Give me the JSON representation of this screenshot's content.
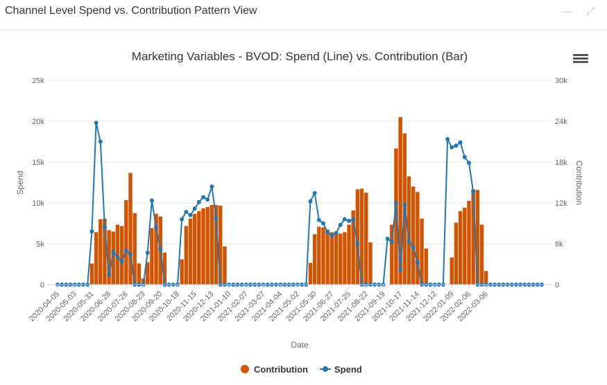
{
  "panel": {
    "title": "Channel Level Spend vs. Contribution Pattern View",
    "minimize_icon": "minimize-icon",
    "expand_icon": "expand-icon"
  },
  "menu_icon": "hamburger-menu-icon",
  "colors": {
    "contribution": "#d35400",
    "spend": "#1f77b4",
    "grid": "#e6e6e6",
    "text": "#666666"
  },
  "chart_data": {
    "type": "bar",
    "title": "Marketing Variables - BVOD: Spend (Line) vs. Contribution (Bar)",
    "xlabel": "Date",
    "ylabel": "Spend",
    "y2label": "Contribution",
    "ylim": [
      0,
      25000
    ],
    "y2lim": [
      0,
      30000
    ],
    "yticks": [
      "0",
      "5k",
      "10k",
      "15k",
      "20k",
      "25k"
    ],
    "y2ticks": [
      "0",
      "6k",
      "12k",
      "18k",
      "24k",
      "30k"
    ],
    "legend_position": "bottom-center",
    "xtick_labels": [
      "2020-04-05",
      "2020-05-03",
      "2020-05-31",
      "2020-06-28",
      "2020-07-26",
      "2020-08-23",
      "2020-09-20",
      "2020-10-18",
      "2020-11-15",
      "2020-12-13",
      "2021-01-10",
      "2021-02-07",
      "2021-03-07",
      "2021-04-04",
      "2021-05-02",
      "2021-05-30",
      "2021-06-27",
      "2021-07-25",
      "2021-08-22",
      "2021-09-19",
      "2021-10-17",
      "2021-11-14",
      "2021-12-12",
      "2022-01-09",
      "2022-02-06",
      "2022-03-06"
    ],
    "x_start": "2020-04-05",
    "x_step_days": 7,
    "series": [
      {
        "name": "Contribution",
        "kind": "bar",
        "axis": "right",
        "values": [
          0,
          0,
          0,
          0,
          0,
          0,
          0,
          0,
          3100,
          7700,
          9600,
          9700,
          8000,
          7800,
          8800,
          8600,
          12400,
          16400,
          10500,
          3100,
          900,
          3300,
          8300,
          10400,
          10000,
          4700,
          0,
          0,
          0,
          3700,
          8600,
          9700,
          10400,
          10800,
          11200,
          11400,
          11700,
          11700,
          11600,
          5600,
          0,
          0,
          0,
          0,
          0,
          0,
          0,
          0,
          0,
          0,
          0,
          0,
          0,
          0,
          0,
          0,
          0,
          0,
          0,
          3200,
          7400,
          8500,
          8400,
          8100,
          7700,
          7500,
          7500,
          7700,
          8800,
          10900,
          14000,
          14100,
          13500,
          6200,
          0,
          0,
          0,
          0,
          8800,
          20000,
          24600,
          22200,
          15900,
          14400,
          13600,
          9700,
          5300,
          0,
          0,
          0,
          0,
          0,
          4000,
          9100,
          10800,
          11300,
          12300,
          14000,
          13900,
          8800,
          2000,
          0,
          0,
          0,
          0,
          0,
          0,
          0,
          0,
          0,
          0,
          0,
          0,
          0
        ]
      },
      {
        "name": "Spend",
        "kind": "line",
        "axis": "left",
        "values": [
          0,
          0,
          0,
          0,
          0,
          0,
          0,
          0,
          6500,
          19800,
          17500,
          7000,
          1200,
          4000,
          3400,
          2800,
          4200,
          3700,
          0,
          0,
          0,
          3900,
          10300,
          7000,
          4300,
          0,
          0,
          0,
          0,
          8000,
          8900,
          8500,
          9300,
          10100,
          10700,
          10400,
          12000,
          8100,
          0,
          0,
          0,
          0,
          0,
          0,
          0,
          0,
          0,
          0,
          0,
          0,
          0,
          0,
          0,
          0,
          0,
          0,
          0,
          0,
          0,
          10200,
          11200,
          7900,
          7500,
          6400,
          6000,
          6300,
          7300,
          8000,
          7800,
          8000,
          5000,
          0,
          0,
          0,
          0,
          0,
          0,
          5600,
          5200,
          10000,
          1800,
          9800,
          5300,
          4600,
          2700,
          0,
          0,
          0,
          0,
          0,
          0,
          17800,
          16800,
          17000,
          17400,
          15600,
          14900,
          11400,
          0,
          0,
          0,
          0,
          0,
          0,
          0,
          0,
          0,
          0,
          0,
          0,
          0,
          0,
          0,
          0
        ]
      }
    ]
  }
}
